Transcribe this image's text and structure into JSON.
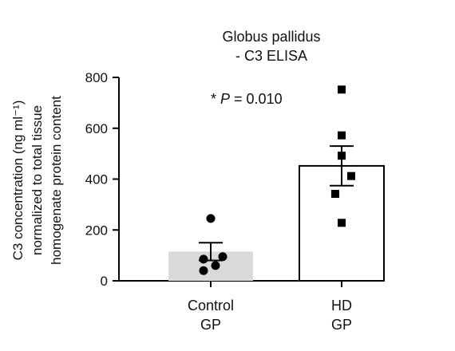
{
  "chart_data": {
    "type": "bar",
    "title_lines": [
      "Globus pallidus",
      "- C3 ELISA"
    ],
    "ylabel_lines": [
      "C3 concentration (ng ml⁻¹)",
      "normalized to total tissue",
      "homogenate protein content"
    ],
    "xlabel": "",
    "ylim": [
      0,
      800
    ],
    "yticks": [
      0,
      200,
      400,
      600,
      800
    ],
    "ytick_labels": [
      "0",
      "200",
      "400",
      "600",
      "800"
    ],
    "annotation": {
      "star": "* ",
      "p_symbol": "P",
      "rest": " = 0.010"
    },
    "categories": [
      {
        "label_lines": [
          "Control",
          "GP"
        ]
      },
      {
        "label_lines": [
          "HD",
          "GP"
        ]
      }
    ],
    "bars": [
      {
        "mean": 115,
        "sem": 35,
        "fill": "#d9d9d9",
        "outline": false,
        "marker": "circle",
        "points": [
          245,
          60,
          95,
          85,
          40
        ]
      },
      {
        "mean": 452,
        "sem": 78,
        "fill": "#ffffff",
        "outline": true,
        "marker": "square",
        "points": [
          752,
          572,
          492,
          412,
          342,
          228
        ]
      }
    ],
    "colors": {
      "axis": "#000000",
      "control_fill": "#d9d9d9",
      "hd_fill": "#ffffff",
      "points": "#000000"
    },
    "grid": false,
    "legend": "none"
  }
}
